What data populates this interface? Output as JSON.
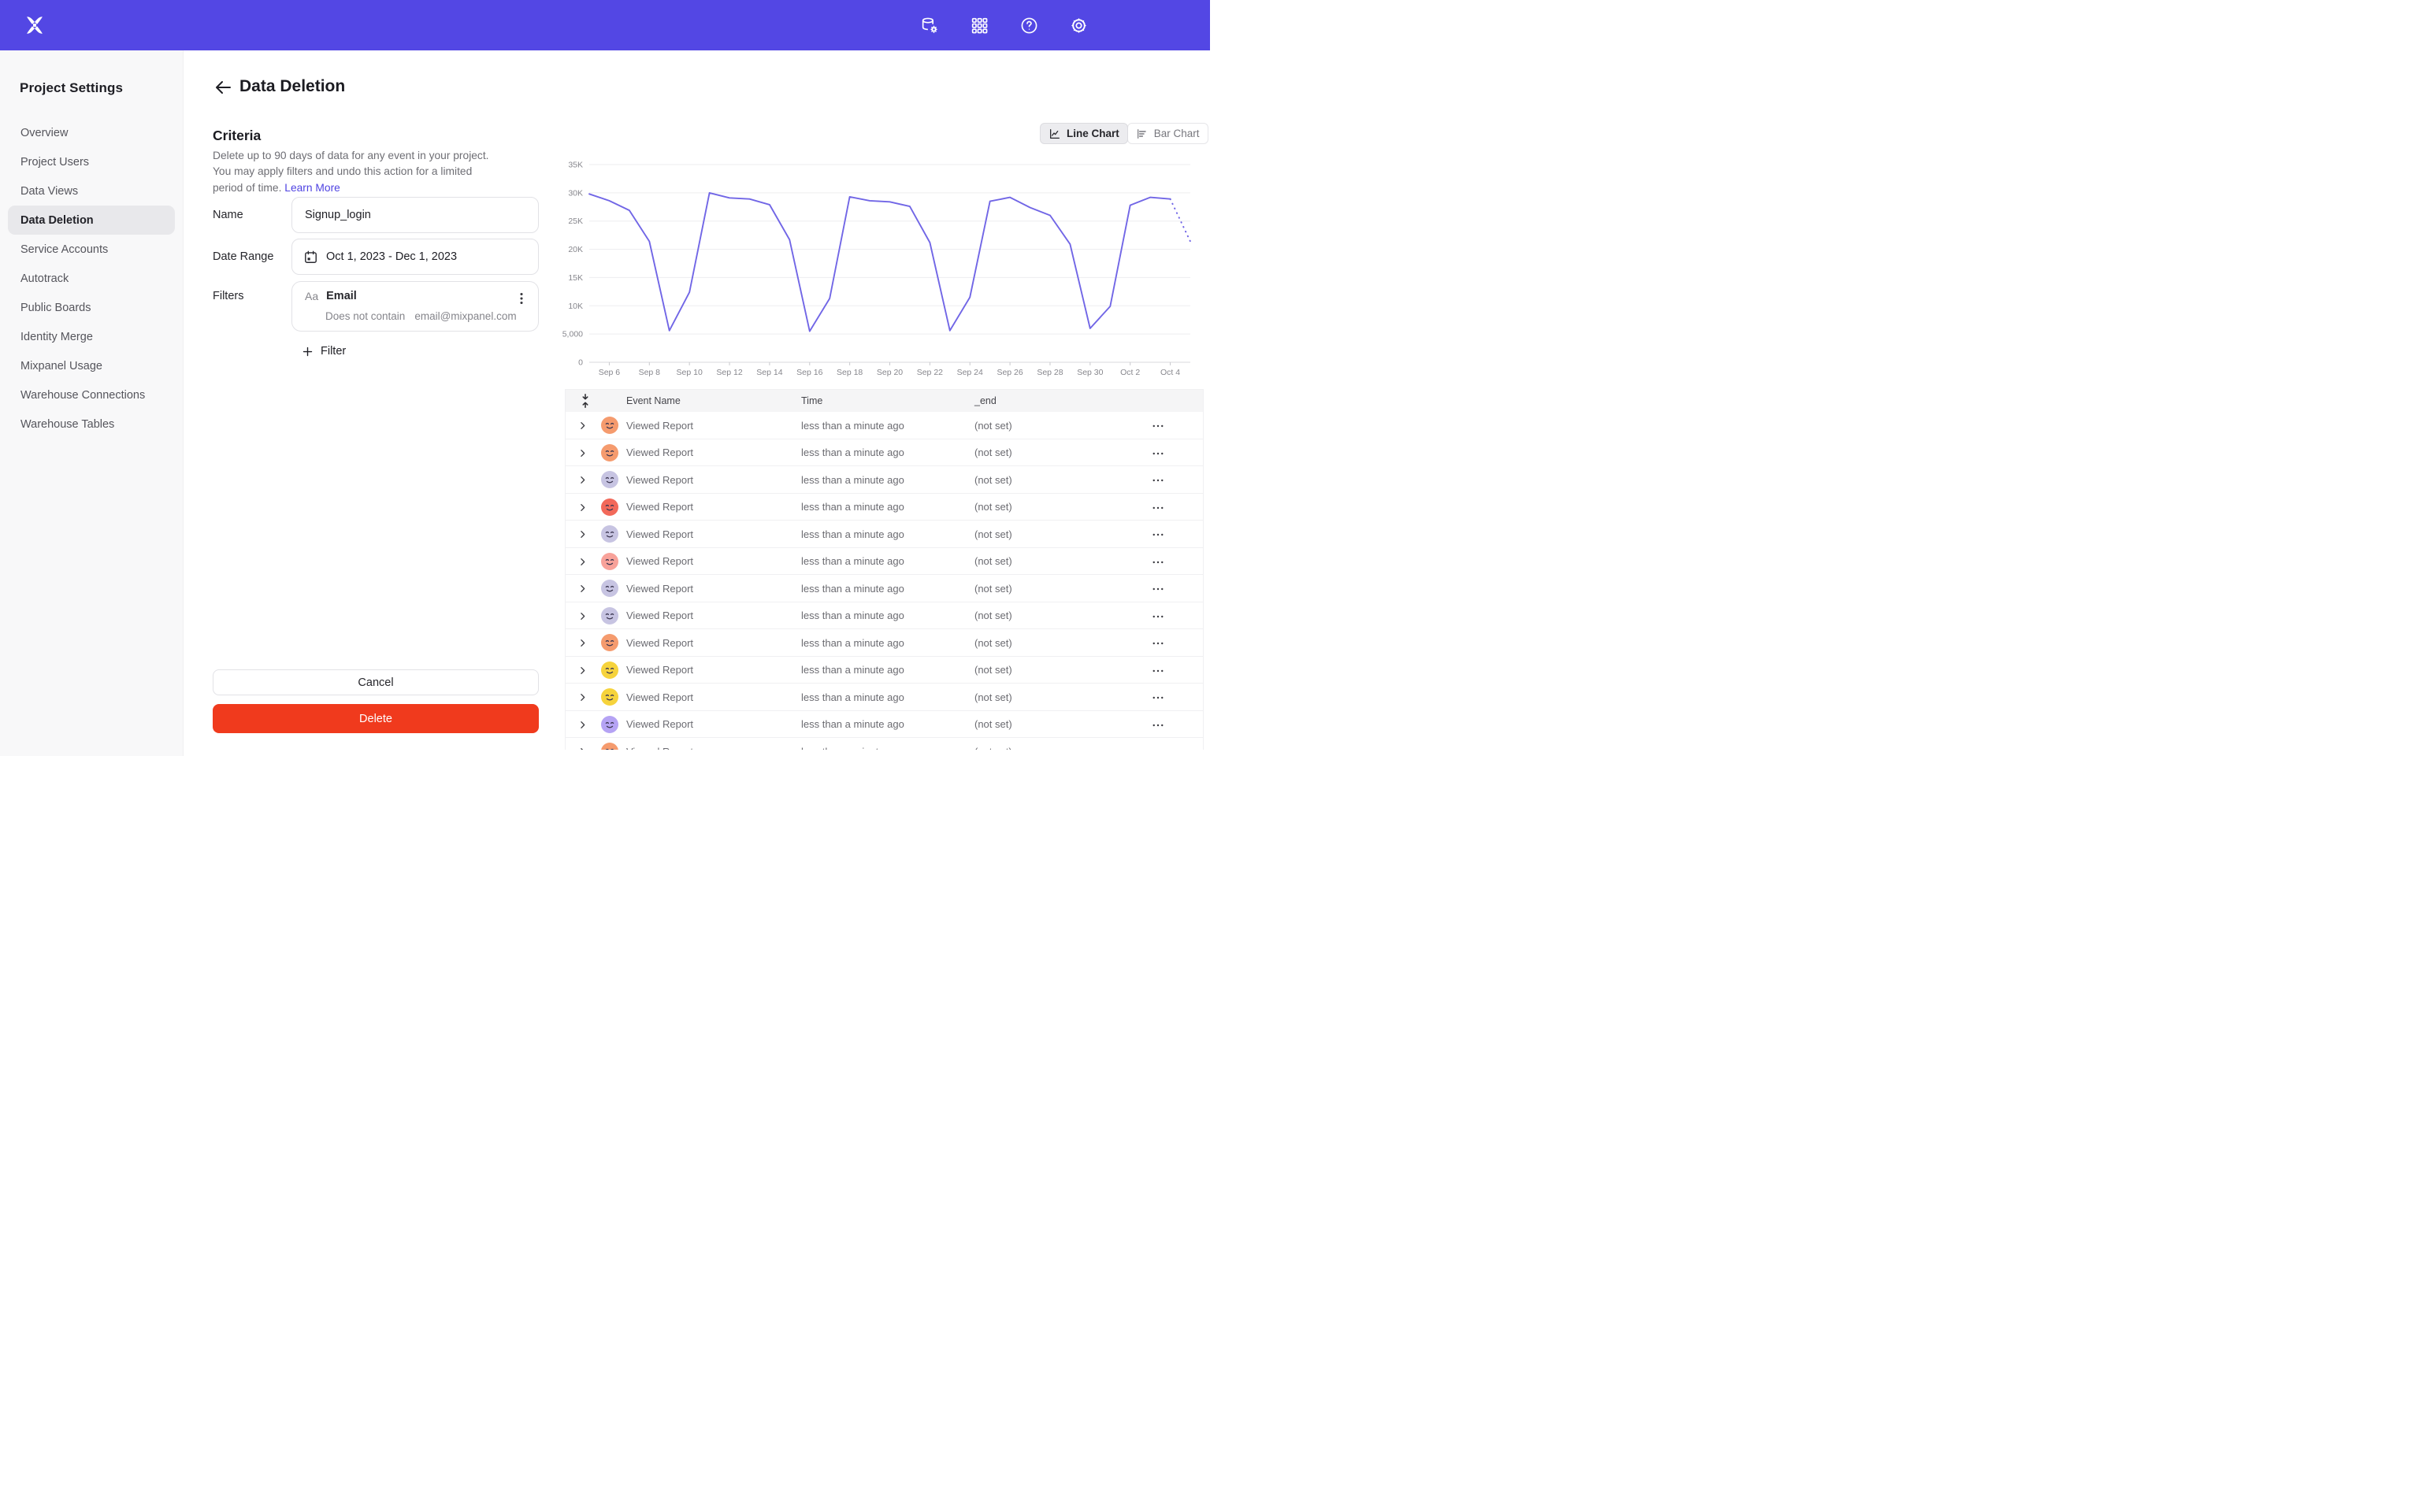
{
  "topbar": {
    "icons": [
      {
        "name": "data-management-icon"
      },
      {
        "name": "apps-grid-icon"
      },
      {
        "name": "help-icon"
      },
      {
        "name": "settings-gear-icon"
      }
    ],
    "brand_color": "#5347E4"
  },
  "sidebar": {
    "title": "Project Settings",
    "items": [
      {
        "label": "Overview",
        "active": false
      },
      {
        "label": "Project Users",
        "active": false
      },
      {
        "label": "Data Views",
        "active": false
      },
      {
        "label": "Data Deletion",
        "active": true
      },
      {
        "label": "Service Accounts",
        "active": false
      },
      {
        "label": "Autotrack",
        "active": false
      },
      {
        "label": "Public Boards",
        "active": false
      },
      {
        "label": "Identity Merge",
        "active": false
      },
      {
        "label": "Mixpanel Usage",
        "active": false
      },
      {
        "label": "Warehouse Connections",
        "active": false
      },
      {
        "label": "Warehouse Tables",
        "active": false
      }
    ]
  },
  "page": {
    "title": "Data Deletion"
  },
  "criteria": {
    "heading": "Criteria",
    "description": "Delete up to 90 days of data for any event in your project. You may apply filters and undo this action for a limited period of time.",
    "learn_more": "Learn More"
  },
  "form": {
    "name_label": "Name",
    "name_value": "Signup_login",
    "date_label": "Date Range",
    "date_value": "Oct 1, 2023 - Dec 1, 2023",
    "filters_label": "Filters",
    "filter": {
      "type_badge": "Aa",
      "property": "Email",
      "operator": "Does not contain",
      "value": "email@mixpanel.com"
    },
    "add_filter_label": "Filter"
  },
  "actions": {
    "cancel": "Cancel",
    "delete": "Delete",
    "delete_color": "#F03A1D"
  },
  "chart_toggle": {
    "line": "Line Chart",
    "bar": "Bar Chart"
  },
  "chart_data": {
    "type": "line",
    "title": "",
    "xlabel": "",
    "ylabel": "",
    "line_color": "#7166E6",
    "grid": true,
    "ylim": [
      0,
      35000
    ],
    "y_gridlines": [
      {
        "value": 0,
        "label": "0"
      },
      {
        "value": 5000,
        "label": "5,000"
      },
      {
        "value": 10000,
        "label": "10K"
      },
      {
        "value": 15000,
        "label": "15K"
      },
      {
        "value": 20000,
        "label": "20K"
      },
      {
        "value": 25000,
        "label": "25K"
      },
      {
        "value": 30000,
        "label": "30K"
      },
      {
        "value": 35000,
        "label": "35K"
      }
    ],
    "x": [
      "Sep 5",
      "Sep 6",
      "Sep 7",
      "Sep 8",
      "Sep 9",
      "Sep 10",
      "Sep 11",
      "Sep 12",
      "Sep 13",
      "Sep 14",
      "Sep 15",
      "Sep 16",
      "Sep 17",
      "Sep 18",
      "Sep 19",
      "Sep 20",
      "Sep 21",
      "Sep 22",
      "Sep 23",
      "Sep 24",
      "Sep 25",
      "Sep 26",
      "Sep 27",
      "Sep 28",
      "Sep 29",
      "Sep 30",
      "Oct 1",
      "Oct 2",
      "Oct 3",
      "Oct 4",
      "Oct 5"
    ],
    "values": [
      29800,
      28600,
      26900,
      21400,
      5600,
      12400,
      30000,
      29100,
      28900,
      27900,
      21700,
      5500,
      11300,
      29300,
      28600,
      28400,
      27600,
      21200,
      5600,
      11500,
      28500,
      29200,
      27400,
      26000,
      20900,
      6000,
      9900,
      27800,
      29200,
      28900,
      21400
    ],
    "solid_until_index": 29,
    "dotted_tail": true,
    "tick_labels": [
      "Sep 6",
      "Sep 8",
      "Sep 10",
      "Sep 12",
      "Sep 14",
      "Sep 16",
      "Sep 18",
      "Sep 20",
      "Sep 22",
      "Sep 24",
      "Sep 26",
      "Sep 28",
      "Sep 30",
      "Oct 2",
      "Oct 4"
    ],
    "tick_start_index": 1,
    "tick_step": 2
  },
  "table": {
    "headers": [
      "Event Name",
      "Time",
      "_end"
    ],
    "rows": [
      {
        "event": "Viewed Report",
        "time": "less than a minute ago",
        "end": "(not set)",
        "avatar_color": "#F59B6E"
      },
      {
        "event": "Viewed Report",
        "time": "less than a minute ago",
        "end": "(not set)",
        "avatar_color": "#F59B6E"
      },
      {
        "event": "Viewed Report",
        "time": "less than a minute ago",
        "end": "(not set)",
        "avatar_color": "#C7C4E2"
      },
      {
        "event": "Viewed Report",
        "time": "less than a minute ago",
        "end": "(not set)",
        "avatar_color": "#F2695A"
      },
      {
        "event": "Viewed Report",
        "time": "less than a minute ago",
        "end": "(not set)",
        "avatar_color": "#C7C4E2"
      },
      {
        "event": "Viewed Report",
        "time": "less than a minute ago",
        "end": "(not set)",
        "avatar_color": "#F8A29A"
      },
      {
        "event": "Viewed Report",
        "time": "less than a minute ago",
        "end": "(not set)",
        "avatar_color": "#C7C4E2"
      },
      {
        "event": "Viewed Report",
        "time": "less than a minute ago",
        "end": "(not set)",
        "avatar_color": "#C7C4E2"
      },
      {
        "event": "Viewed Report",
        "time": "less than a minute ago",
        "end": "(not set)",
        "avatar_color": "#F59B6E"
      },
      {
        "event": "Viewed Report",
        "time": "less than a minute ago",
        "end": "(not set)",
        "avatar_color": "#F6D33C"
      },
      {
        "event": "Viewed Report",
        "time": "less than a minute ago",
        "end": "(not set)",
        "avatar_color": "#F6D33C"
      },
      {
        "event": "Viewed Report",
        "time": "less than a minute ago",
        "end": "(not set)",
        "avatar_color": "#B5A3F4"
      },
      {
        "event": "Viewed Report",
        "time": "less than a minute ago",
        "end": "(not set)",
        "avatar_color": "#F59B6E"
      }
    ]
  }
}
